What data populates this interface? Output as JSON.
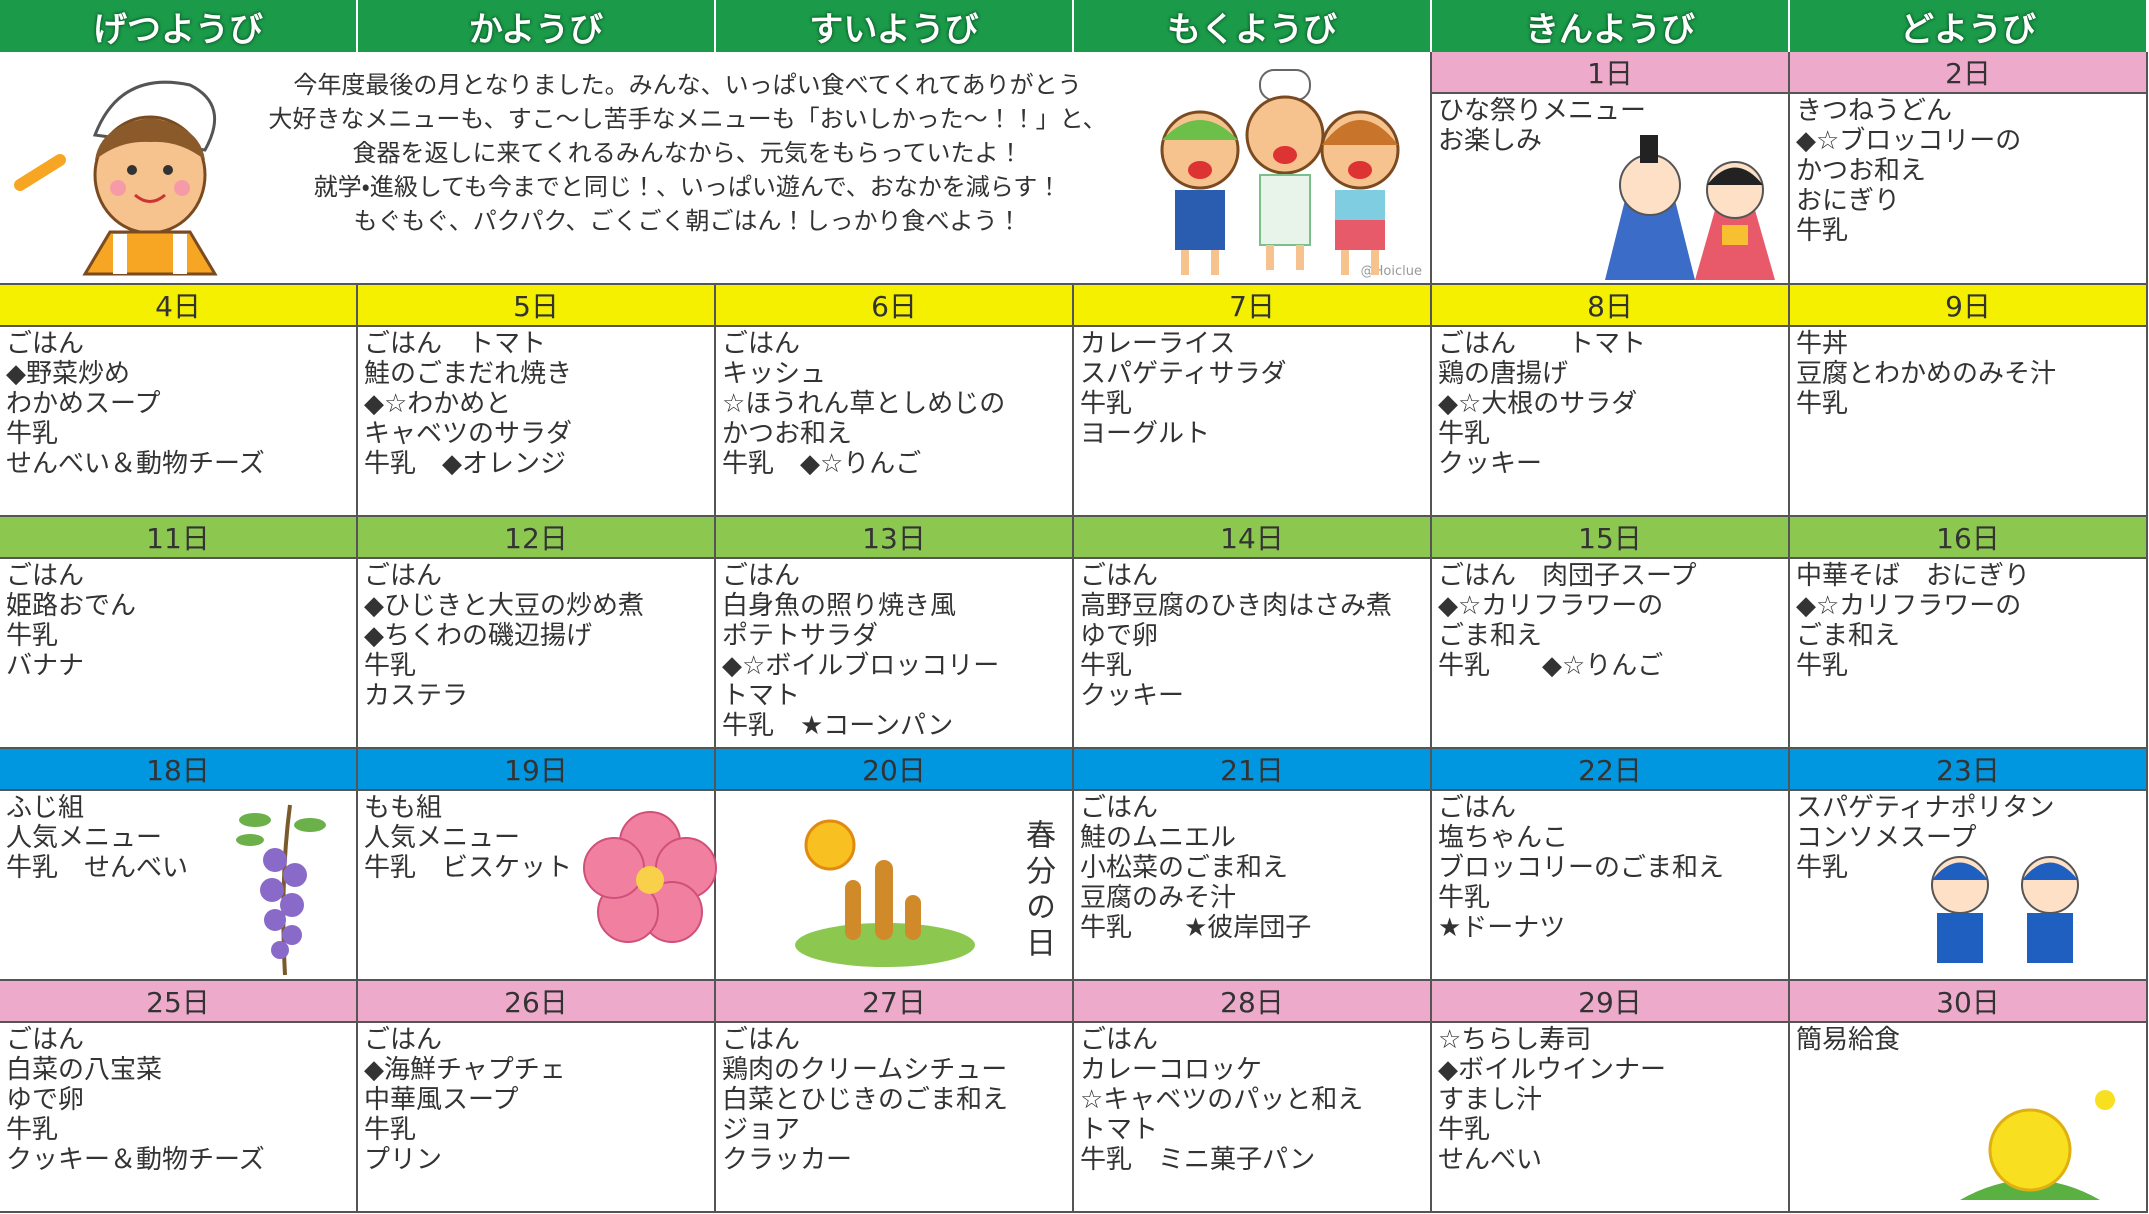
{
  "weekdays": [
    "げつようび",
    "かようび",
    "すいようび",
    "もくようび",
    "きんようび",
    "どようび"
  ],
  "intro": {
    "lines": [
      "今年度最後の月となりました。みんな、いっぱい食べてくれてありがとう",
      "大好きなメニューも、すこ〜し苦手なメニューも「おいしかった〜！！」と、",
      "食器を返しに来てくれるみんなから、元気をもらっていたよ！",
      "就学・進級しても今までと同じ！、いっぱい遊んで、おなかを減らす！",
      "もぐもぐ、パクパク、ごくごく朝ごはん！しっかり食べよう！"
    ],
    "credit": "@Hoiclue"
  },
  "weeks": [
    [
      {
        "date": "1日",
        "items": [
          "ひな祭りメニュー",
          "お楽しみ"
        ]
      },
      {
        "date": "2日",
        "items": [
          "きつねうどん",
          "◆☆ブロッコリーの",
          "かつお和え",
          "おにぎり",
          "牛乳"
        ]
      }
    ],
    [
      {
        "date": "4日",
        "items": [
          "ごはん",
          "◆野菜炒め",
          "わかめスープ",
          "牛乳",
          "せんべい＆動物チーズ"
        ]
      },
      {
        "date": "5日",
        "items": [
          "ごはん　トマト",
          "鮭のごまだれ焼き",
          "◆☆わかめと",
          "キャベツのサラダ",
          "牛乳　◆オレンジ"
        ]
      },
      {
        "date": "6日",
        "items": [
          "ごはん",
          "キッシュ",
          "☆ほうれん草としめじの",
          "かつお和え",
          "牛乳　◆☆りんご"
        ]
      },
      {
        "date": "7日",
        "items": [
          "カレーライス",
          "スパゲティサラダ",
          "牛乳",
          "ヨーグルト"
        ]
      },
      {
        "date": "8日",
        "items": [
          "ごはん　　トマト",
          "鶏の唐揚げ",
          "◆☆大根のサラダ",
          "牛乳",
          "クッキー"
        ]
      },
      {
        "date": "9日",
        "items": [
          "牛丼",
          "豆腐とわかめのみそ汁",
          "牛乳"
        ]
      }
    ],
    [
      {
        "date": "11日",
        "items": [
          "ごはん",
          "姫路おでん",
          "牛乳",
          "バナナ"
        ]
      },
      {
        "date": "12日",
        "items": [
          "ごはん",
          "◆ひじきと大豆の炒め煮",
          "◆ちくわの磯辺揚げ",
          "牛乳",
          "カステラ"
        ]
      },
      {
        "date": "13日",
        "items": [
          "ごはん",
          "白身魚の照り焼き風",
          "ポテトサラダ",
          "◆☆ボイルブロッコリー",
          "トマト",
          "牛乳　★コーンパン"
        ]
      },
      {
        "date": "14日",
        "items": [
          "ごはん",
          "高野豆腐のひき肉はさみ煮",
          "ゆで卵",
          "牛乳",
          "クッキー"
        ]
      },
      {
        "date": "15日",
        "items": [
          "ごはん　肉団子スープ",
          "◆☆カリフラワーの",
          "ごま和え",
          "牛乳　　◆☆りんご"
        ]
      },
      {
        "date": "16日",
        "items": [
          "中華そば　おにぎり",
          "◆☆カリフラワーの",
          "ごま和え",
          "牛乳"
        ]
      }
    ],
    [
      {
        "date": "18日",
        "items": [
          "ふじ組",
          "人気メニュー",
          "牛乳　せんべい"
        ]
      },
      {
        "date": "19日",
        "items": [
          "もも組",
          "人気メニュー",
          "牛乳　ビスケット"
        ]
      },
      {
        "date": "20日",
        "items": [
          "春分の日"
        ],
        "vertical": true
      },
      {
        "date": "21日",
        "items": [
          "ごはん",
          "鮭のムニエル",
          "小松菜のごま和え",
          "豆腐のみそ汁",
          "牛乳　　★彼岸団子"
        ]
      },
      {
        "date": "22日",
        "items": [
          "ごはん",
          "塩ちゃんこ",
          "ブロッコリーのごま和え",
          "牛乳",
          "★ドーナツ"
        ]
      },
      {
        "date": "23日",
        "items": [
          "スパゲティナポリタン",
          "コンソメスープ",
          "牛乳"
        ]
      }
    ],
    [
      {
        "date": "25日",
        "items": [
          "ごはん",
          "白菜の八宝菜",
          "ゆで卵",
          "牛乳",
          "クッキー＆動物チーズ"
        ]
      },
      {
        "date": "26日",
        "items": [
          "ごはん",
          "◆海鮮チャプチェ",
          "中華風スープ",
          "牛乳",
          "プリン"
        ]
      },
      {
        "date": "27日",
        "items": [
          "ごはん",
          "鶏肉のクリームシチュー",
          "白菜とひじきのごま和え",
          "ジョア",
          "クラッカー"
        ]
      },
      {
        "date": "28日",
        "items": [
          "ごはん",
          "カレーコロッケ",
          "☆キャベツのパッと和え",
          "トマト",
          "牛乳　ミニ菓子パン"
        ]
      },
      {
        "date": "29日",
        "items": [
          "☆ちらし寿司",
          "◆ボイルウインナー",
          "すまし汁",
          "牛乳",
          "せんべい"
        ]
      },
      {
        "date": "30日",
        "items": [
          "簡易給食"
        ]
      }
    ]
  ]
}
